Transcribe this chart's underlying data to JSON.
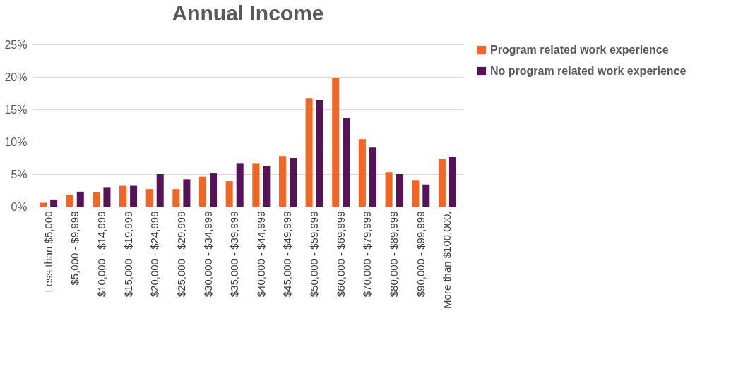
{
  "chart_data": {
    "type": "bar",
    "title": "Annual Income",
    "categories": [
      "Less than $5,000",
      "$5,000 - $9,999",
      "$10,000 - $14,999",
      "$15,000 - $19,999",
      "$20,000 - $24,999",
      "$25,000 - $29,999",
      "$30,000 - $34,999",
      "$35,000 - $39,999",
      "$40,000 - $44,999",
      "$45,000 - $49,999",
      "$50,000 - $59,999",
      "$60,000 - $69,999",
      "$70,000 - $79,999",
      "$80,000 - $89,999",
      "$90,000 - $99,999",
      "More than $100,000."
    ],
    "series": [
      {
        "name": "Program related work experience",
        "color": "#f26522",
        "values": [
          0.6,
          1.8,
          2.2,
          3.2,
          2.7,
          2.7,
          4.6,
          3.9,
          6.7,
          7.8,
          16.7,
          19.9,
          10.4,
          5.3,
          4.1,
          7.3
        ]
      },
      {
        "name": "No program related work experience",
        "color": "#561359",
        "values": [
          1.1,
          2.3,
          3.0,
          3.2,
          5.0,
          4.2,
          5.1,
          6.7,
          6.3,
          7.5,
          16.4,
          13.6,
          9.1,
          5.0,
          3.4,
          7.7
        ]
      }
    ],
    "ylim": [
      0,
      25
    ],
    "yticks": [
      {
        "value": 0,
        "label": "0%"
      },
      {
        "value": 5,
        "label": "5%"
      },
      {
        "value": 10,
        "label": "10%"
      },
      {
        "value": 15,
        "label": "15%"
      },
      {
        "value": 20,
        "label": "20%"
      },
      {
        "value": 25,
        "label": "25%"
      }
    ],
    "grid": "y",
    "legend": "right"
  }
}
